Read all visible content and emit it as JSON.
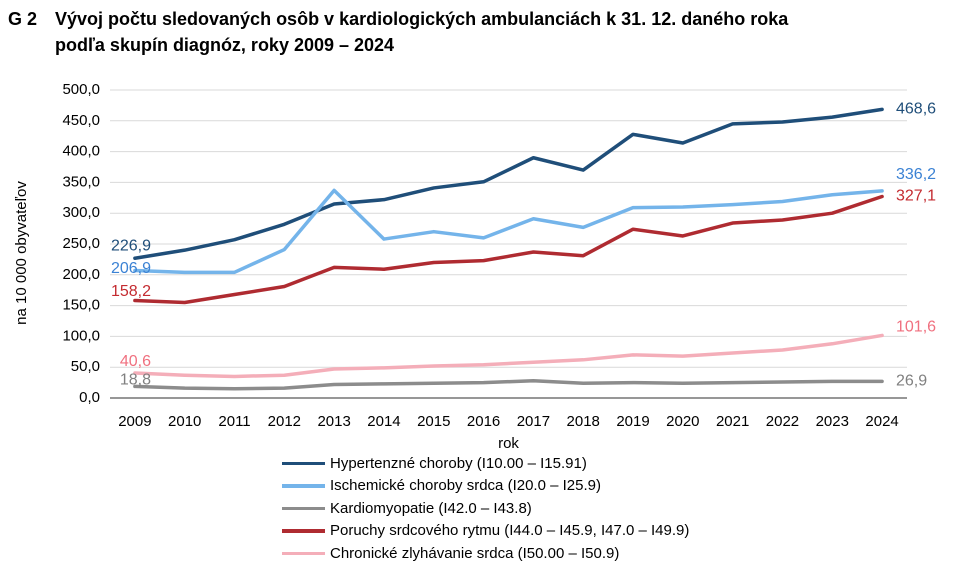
{
  "title": {
    "code": "G 2",
    "line1": "Vývoj počtu sledovaných osôb v kardiologických ambulanciách k 31. 12. daného roka",
    "line2": "podľa skupín diagnóz, roky 2009 – 2024"
  },
  "colors": {
    "grid": "#D9D9D9",
    "axis": "#595959",
    "tick_text": "#000000"
  },
  "chart_data": {
    "type": "line",
    "x": [
      2009,
      2010,
      2011,
      2012,
      2013,
      2014,
      2015,
      2016,
      2017,
      2018,
      2019,
      2020,
      2021,
      2022,
      2023,
      2024
    ],
    "xlabel": "rok",
    "ylabel": "na 10 000 obyvateľov",
    "ylim": [
      0,
      500
    ],
    "y_tick_step": 50,
    "y_tick_labels": [
      "0,0",
      "50,0",
      "100,0",
      "150,0",
      "200,0",
      "250,0",
      "300,0",
      "350,0",
      "400,0",
      "450,0",
      "500,0"
    ],
    "grid": "horizontal",
    "legend_position": "bottom",
    "series": [
      {
        "name": "Hypertenzné choroby (I10.00 – I15.91)",
        "color": "#1F4E79",
        "label_color": "#1F4E79",
        "first_label": "226,9",
        "last_label": "468,6",
        "values": [
          226.9,
          240,
          257,
          282,
          315,
          322,
          341,
          351,
          390,
          370,
          428,
          414,
          445,
          448,
          456,
          468.6
        ]
      },
      {
        "name": "Ischemické choroby srdca (I20.0 – I25.9)",
        "color": "#74B4EA",
        "label_color": "#3B82D4",
        "first_label": "206,9",
        "last_label": "336,2",
        "values": [
          206.9,
          204,
          204,
          241,
          337,
          258,
          270,
          260,
          291,
          277,
          309,
          310,
          314,
          319,
          330,
          336.2
        ]
      },
      {
        "name": "Kardiomyopatie (I42.0 – I43.8)",
        "color": "#8C8C8C",
        "label_color": "#808080",
        "first_label": "18,8",
        "last_label": "26,9",
        "values": [
          18.8,
          16,
          15,
          16,
          22,
          23,
          24,
          25,
          28,
          24,
          25,
          24,
          25,
          26,
          27,
          26.9
        ]
      },
      {
        "name": "Poruchy srdcového rytmu (I44.0 – I45.9, I47.0 – I49.9)",
        "color": "#AF2B31",
        "label_color": "#C42B30",
        "first_label": "158,2",
        "last_label": "327,1",
        "values": [
          158.2,
          155,
          168,
          181,
          212,
          209,
          220,
          223,
          237,
          231,
          274,
          263,
          284,
          289,
          300,
          327.1
        ]
      },
      {
        "name": "Chronické zlyhávanie srdca (I50.00 – I50.9)",
        "color": "#F4AEB9",
        "label_color": "#F0707F",
        "first_label": "40,6",
        "last_label": "101,6",
        "values": [
          40.6,
          37,
          35,
          37,
          47,
          49,
          52,
          54,
          58,
          62,
          70,
          68,
          73,
          78,
          88,
          101.6
        ]
      }
    ]
  }
}
